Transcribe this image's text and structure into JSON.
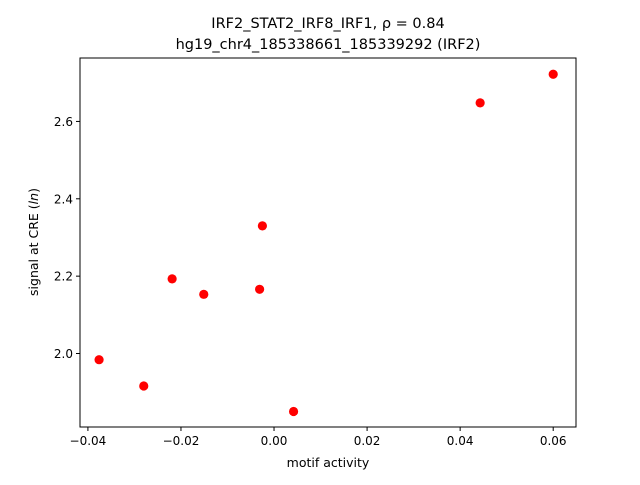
{
  "chart_data": {
    "type": "scatter",
    "title_line1": "IRF2_STAT2_IRF8_IRF1, ρ = 0.84",
    "title_line2": "hg19_chr4_185338661_185339292 (IRF2)",
    "xlabel": "motif activity",
    "ylabel": "signal at CRE (",
    "ylabel_italic": "ln",
    "ylabel_end": ")",
    "xlim": [
      -0.0417,
      0.0649
    ],
    "ylim": [
      1.81,
      2.764
    ],
    "xticks": [
      -0.04,
      -0.02,
      0.0,
      0.02,
      0.04,
      0.06
    ],
    "xtick_labels": [
      "−0.04",
      "−0.02",
      "0.00",
      "0.02",
      "0.04",
      "0.06"
    ],
    "yticks": [
      2.0,
      2.2,
      2.4,
      2.6
    ],
    "ytick_labels": [
      "2.0",
      "2.2",
      "2.4",
      "2.6"
    ],
    "marker_color": "#ff0000",
    "grid": false,
    "points": [
      {
        "x": -0.0376,
        "y": 1.984
      },
      {
        "x": -0.028,
        "y": 1.916
      },
      {
        "x": -0.0219,
        "y": 2.193
      },
      {
        "x": -0.0151,
        "y": 2.153
      },
      {
        "x": -0.0031,
        "y": 2.166
      },
      {
        "x": -0.0025,
        "y": 2.33
      },
      {
        "x": 0.0042,
        "y": 1.85
      },
      {
        "x": 0.0443,
        "y": 2.648
      },
      {
        "x": 0.06,
        "y": 2.722
      }
    ]
  }
}
